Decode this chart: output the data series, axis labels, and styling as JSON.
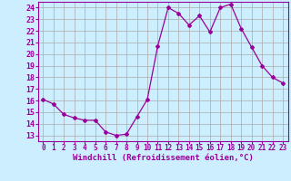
{
  "x": [
    0,
    1,
    2,
    3,
    4,
    5,
    6,
    7,
    8,
    9,
    10,
    11,
    12,
    13,
    14,
    15,
    16,
    17,
    18,
    19,
    20,
    21,
    22,
    23
  ],
  "y": [
    16.1,
    15.7,
    14.8,
    14.5,
    14.3,
    14.3,
    13.3,
    13.0,
    13.1,
    14.6,
    16.1,
    20.7,
    24.0,
    23.5,
    22.5,
    23.3,
    21.9,
    24.0,
    24.3,
    22.2,
    20.6,
    19.0,
    18.0,
    17.5
  ],
  "line_color": "#990099",
  "marker": "D",
  "marker_size": 2.0,
  "bg_color": "#cceeff",
  "grid_color": "#aaaaaa",
  "xlabel": "Windchill (Refroidissement éolien,°C)",
  "ylabel_ticks": [
    13,
    14,
    15,
    16,
    17,
    18,
    19,
    20,
    21,
    22,
    23,
    24
  ],
  "ylim": [
    12.5,
    24.5
  ],
  "xlim": [
    -0.5,
    23.5
  ],
  "tick_color": "#990099",
  "label_color": "#990099",
  "font_size_xlabel": 6.5,
  "font_size_yticks": 6.0,
  "font_size_xticks": 5.5,
  "linewidth": 0.9
}
